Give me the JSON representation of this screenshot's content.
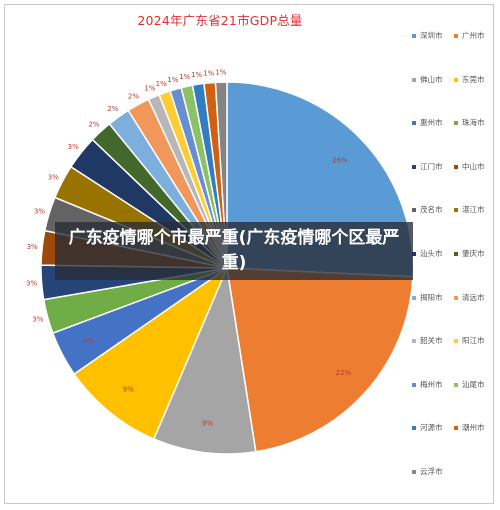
{
  "banner": {
    "text": "广东疫情哪个市最严重(广东疫情哪个区最严重)"
  },
  "chart_data": {
    "type": "pie",
    "title": "2024年广东省21市GDP总量",
    "legend_position": "right",
    "slices": [
      {
        "name": "深圳市",
        "value": 26,
        "label": "26%",
        "color": "#5b9bd5"
      },
      {
        "name": "广州市",
        "value": 22,
        "label": "22%",
        "color": "#ed7d31"
      },
      {
        "name": "佛山市",
        "value": 9,
        "label": "9%",
        "color": "#a5a5a5"
      },
      {
        "name": "东莞市",
        "value": 9,
        "label": "9%",
        "color": "#ffc000"
      },
      {
        "name": "惠州市",
        "value": 4,
        "label": "4%",
        "color": "#4472c4"
      },
      {
        "name": "珠海市",
        "value": 3,
        "label": "3%",
        "color": "#70ad47"
      },
      {
        "name": "江门市",
        "value": 3,
        "label": "3%",
        "color": "#264478"
      },
      {
        "name": "中山市",
        "value": 3,
        "label": "3%",
        "color": "#9e480e"
      },
      {
        "name": "茂名市",
        "value": 3,
        "label": "3%",
        "color": "#636363"
      },
      {
        "name": "湛江市",
        "value": 3,
        "label": "3%",
        "color": "#997300"
      },
      {
        "name": "汕头市",
        "value": 3,
        "label": "3%",
        "color": "#203864"
      },
      {
        "name": "肇庆市",
        "value": 2,
        "label": "2%",
        "color": "#43682b"
      },
      {
        "name": "揭阳市",
        "value": 2,
        "label": "2%",
        "color": "#7cafdd"
      },
      {
        "name": "清远市",
        "value": 2,
        "label": "2%",
        "color": "#f1975a"
      },
      {
        "name": "韶关市",
        "value": 1,
        "label": "1%",
        "color": "#b7b7b7"
      },
      {
        "name": "阳江市",
        "value": 1,
        "label": "1%",
        "color": "#ffcd33"
      },
      {
        "name": "梅州市",
        "value": 1,
        "label": "1%",
        "color": "#698ed0"
      },
      {
        "name": "汕尾市",
        "value": 1,
        "label": "1%",
        "color": "#8cc168"
      },
      {
        "name": "河源市",
        "value": 1,
        "label": "1%",
        "color": "#327dc2"
      },
      {
        "name": "潮州市",
        "value": 1,
        "label": "1%",
        "color": "#d26012"
      },
      {
        "name": "云浮市",
        "value": 1,
        "label": "1%",
        "color": "#848484"
      }
    ]
  }
}
